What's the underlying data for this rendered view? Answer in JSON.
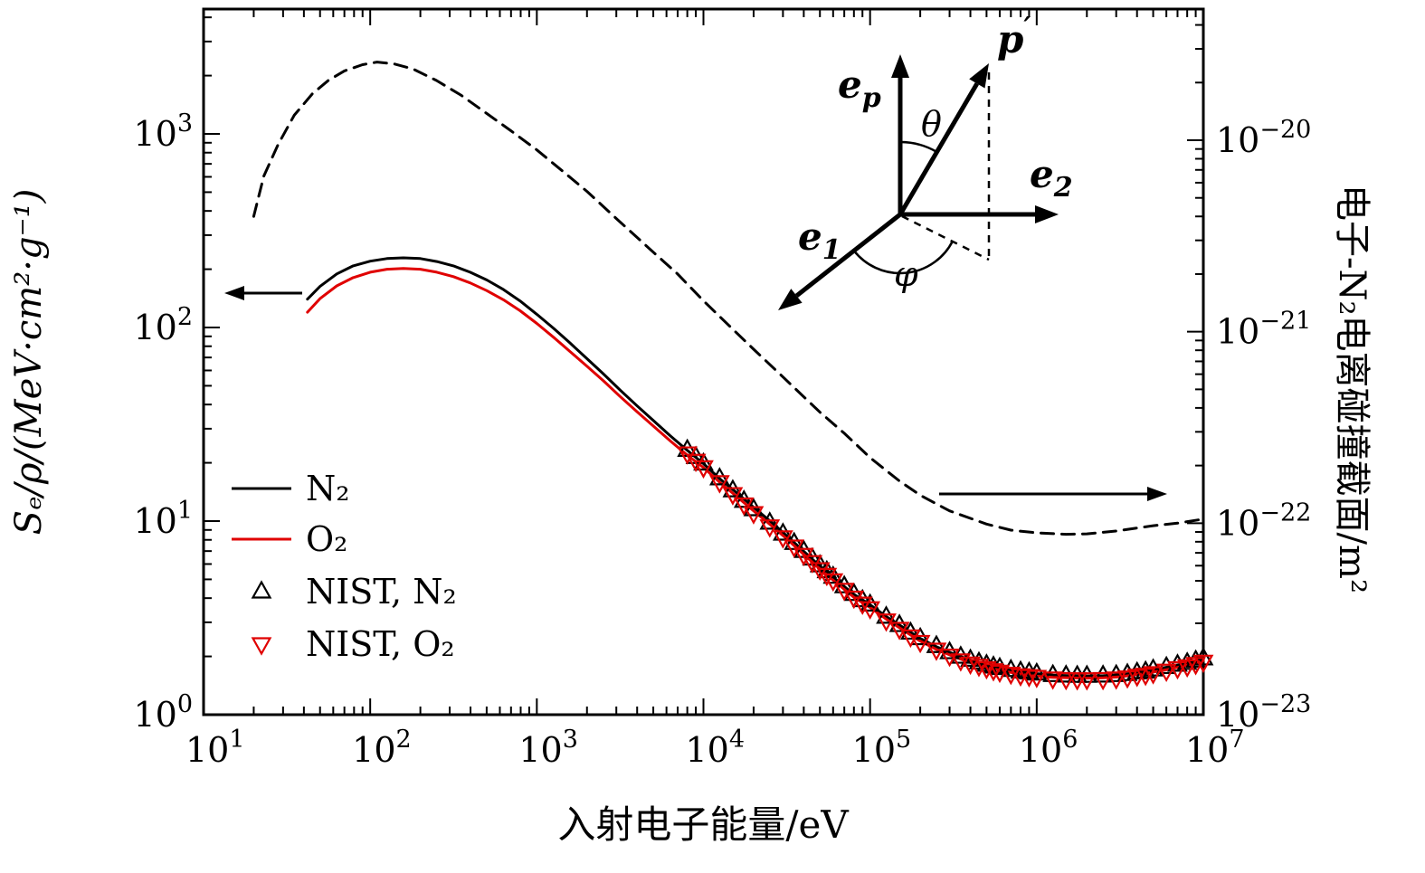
{
  "chart_data": {
    "type": "line",
    "title": "",
    "xlabel": "入射电子能量/eV",
    "ylabel_left": "Sₑ/ρ/(MeV·cm²·g⁻¹)",
    "ylabel_right": "电子-N₂电离碰撞截面/m²",
    "x_axis": {
      "scale": "log",
      "min": 10,
      "max": 10000000,
      "tick_exponents": [
        "1",
        "2",
        "3",
        "4",
        "5",
        "6",
        "7"
      ]
    },
    "y_left": {
      "scale": "log",
      "min": 1,
      "max": 4400,
      "tick_exponents": [
        "0",
        "1",
        "2",
        "3"
      ]
    },
    "y_right": {
      "scale": "log",
      "min": 1e-23,
      "max": 4.9e-20,
      "tick_exponents": [
        "−23",
        "−22",
        "−21",
        "−20"
      ]
    },
    "grid": false,
    "colors": {
      "n2": "#000000",
      "o2": "#e00000",
      "cross_section": "#000000"
    },
    "series": [
      {
        "id": "n2-line",
        "name": "N₂",
        "type": "line",
        "color": "#000000",
        "axis": "left",
        "dash": false,
        "points": [
          [
            42,
            140
          ],
          [
            50,
            163
          ],
          [
            63,
            189
          ],
          [
            79,
            208
          ],
          [
            100,
            220
          ],
          [
            126,
            227
          ],
          [
            158,
            229
          ],
          [
            200,
            227
          ],
          [
            251,
            219
          ],
          [
            316,
            208
          ],
          [
            398,
            193
          ],
          [
            501,
            176
          ],
          [
            631,
            157
          ],
          [
            794,
            137
          ],
          [
            1000,
            117
          ],
          [
            1259,
            99
          ],
          [
            1585,
            83
          ],
          [
            2000,
            69
          ],
          [
            2512,
            57.5
          ],
          [
            3162,
            47.5
          ],
          [
            3981,
            39.5
          ],
          [
            5012,
            33
          ],
          [
            6310,
            27.6
          ],
          [
            7943,
            23.3
          ],
          [
            10000,
            19.8
          ],
          [
            12589,
            16.5
          ],
          [
            15849,
            14.0
          ],
          [
            19953,
            11.8
          ],
          [
            25119,
            10.0
          ],
          [
            31623,
            8.4
          ],
          [
            39811,
            7.0
          ],
          [
            50119,
            5.85
          ],
          [
            63096,
            4.95
          ],
          [
            79433,
            4.2
          ],
          [
            100000,
            3.7
          ],
          [
            125893,
            3.2
          ],
          [
            158489,
            2.82
          ],
          [
            199526,
            2.48
          ],
          [
            251189,
            2.24
          ],
          [
            316228,
            2.06
          ],
          [
            398107,
            1.92
          ],
          [
            501187,
            1.81
          ],
          [
            630957,
            1.73
          ],
          [
            794328,
            1.67
          ],
          [
            1000000,
            1.63
          ],
          [
            1258925,
            1.6
          ],
          [
            1584893,
            1.59
          ],
          [
            1995262,
            1.585
          ],
          [
            2511886,
            1.59
          ],
          [
            3162278,
            1.61
          ],
          [
            3981072,
            1.65
          ],
          [
            5011872,
            1.71
          ],
          [
            6309573,
            1.77
          ],
          [
            7943282,
            1.85
          ],
          [
            10000000,
            1.95
          ]
        ]
      },
      {
        "id": "o2-line",
        "name": "O₂",
        "type": "line",
        "color": "#e00000",
        "axis": "left",
        "dash": false,
        "points": [
          [
            42,
            120
          ],
          [
            50,
            141
          ],
          [
            63,
            164
          ],
          [
            79,
            181
          ],
          [
            100,
            193
          ],
          [
            126,
            200
          ],
          [
            158,
            202
          ],
          [
            200,
            200
          ],
          [
            251,
            193
          ],
          [
            316,
            183
          ],
          [
            398,
            170
          ],
          [
            501,
            155
          ],
          [
            631,
            139
          ],
          [
            794,
            122
          ],
          [
            1000,
            105
          ],
          [
            1259,
            89
          ],
          [
            1585,
            75
          ],
          [
            2000,
            63
          ],
          [
            2512,
            53
          ],
          [
            3162,
            44
          ],
          [
            3981,
            36.8
          ],
          [
            5012,
            30.9
          ],
          [
            6310,
            26.0
          ],
          [
            7943,
            22.0
          ],
          [
            10000,
            18.9
          ],
          [
            12589,
            15.8
          ],
          [
            15849,
            13.4
          ],
          [
            19953,
            11.3
          ],
          [
            25119,
            9.6
          ],
          [
            31623,
            8.1
          ],
          [
            39811,
            6.75
          ],
          [
            50119,
            5.65
          ],
          [
            63096,
            4.78
          ],
          [
            79433,
            4.06
          ],
          [
            100000,
            3.58
          ],
          [
            125893,
            3.1
          ],
          [
            158489,
            2.73
          ],
          [
            199526,
            2.4
          ],
          [
            251189,
            2.17
          ],
          [
            316228,
            2.0
          ],
          [
            398107,
            1.86
          ],
          [
            501187,
            1.76
          ],
          [
            630957,
            1.68
          ],
          [
            794328,
            1.62
          ],
          [
            1000000,
            1.58
          ],
          [
            1258925,
            1.56
          ],
          [
            1584893,
            1.55
          ],
          [
            1995262,
            1.545
          ],
          [
            2511886,
            1.55
          ],
          [
            3162278,
            1.57
          ],
          [
            3981072,
            1.61
          ],
          [
            5011872,
            1.66
          ],
          [
            6309573,
            1.72
          ],
          [
            7943282,
            1.8
          ],
          [
            10000000,
            1.9
          ]
        ]
      },
      {
        "id": "nist-n2-markers",
        "name": "NIST, N₂",
        "type": "scatter",
        "marker": "triangle-up",
        "color": "#000000",
        "axis": "left",
        "points": [
          [
            8000,
            23.3
          ],
          [
            9000,
            21.4
          ],
          [
            10000,
            19.8
          ],
          [
            12500,
            16.6
          ],
          [
            15000,
            14.4
          ],
          [
            17500,
            12.7
          ],
          [
            20000,
            11.5
          ],
          [
            25000,
            9.8
          ],
          [
            30000,
            8.6
          ],
          [
            35000,
            7.7
          ],
          [
            40000,
            7.0
          ],
          [
            45000,
            6.4
          ],
          [
            50000,
            5.9
          ],
          [
            55000,
            5.5
          ],
          [
            60000,
            5.15
          ],
          [
            70000,
            4.6
          ],
          [
            80000,
            4.2
          ],
          [
            90000,
            3.9
          ],
          [
            100000,
            3.7
          ],
          [
            125000,
            3.2
          ],
          [
            150000,
            2.9
          ],
          [
            175000,
            2.65
          ],
          [
            200000,
            2.48
          ],
          [
            250000,
            2.26
          ],
          [
            300000,
            2.1
          ],
          [
            350000,
            1.99
          ],
          [
            400000,
            1.92
          ],
          [
            450000,
            1.86
          ],
          [
            500000,
            1.81
          ],
          [
            550000,
            1.77
          ],
          [
            600000,
            1.74
          ],
          [
            700000,
            1.7
          ],
          [
            800000,
            1.67
          ],
          [
            900000,
            1.65
          ],
          [
            1000000,
            1.63
          ],
          [
            1250000,
            1.6
          ],
          [
            1500000,
            1.59
          ],
          [
            1750000,
            1.585
          ],
          [
            2000000,
            1.585
          ],
          [
            2500000,
            1.59
          ],
          [
            3000000,
            1.6
          ],
          [
            3500000,
            1.62
          ],
          [
            4000000,
            1.65
          ],
          [
            4500000,
            1.67
          ],
          [
            5000000,
            1.71
          ],
          [
            6000000,
            1.76
          ],
          [
            7000000,
            1.81
          ],
          [
            8000000,
            1.85
          ],
          [
            9000000,
            1.9
          ],
          [
            10000000,
            1.95
          ]
        ]
      },
      {
        "id": "nist-o2-markers",
        "name": "NIST, O₂",
        "type": "scatter",
        "marker": "triangle-down",
        "color": "#e00000",
        "axis": "left",
        "points": [
          [
            8000,
            22.4
          ],
          [
            9000,
            20.5
          ],
          [
            10000,
            19.0
          ],
          [
            12500,
            15.9
          ],
          [
            15000,
            13.8
          ],
          [
            17500,
            12.2
          ],
          [
            20000,
            11.0
          ],
          [
            25000,
            9.4
          ],
          [
            30000,
            8.25
          ],
          [
            35000,
            7.4
          ],
          [
            40000,
            6.7
          ],
          [
            45000,
            6.15
          ],
          [
            50000,
            5.65
          ],
          [
            55000,
            5.28
          ],
          [
            60000,
            4.95
          ],
          [
            70000,
            4.42
          ],
          [
            80000,
            4.03
          ],
          [
            90000,
            3.75
          ],
          [
            100000,
            3.55
          ],
          [
            125000,
            3.07
          ],
          [
            150000,
            2.78
          ],
          [
            175000,
            2.54
          ],
          [
            200000,
            2.38
          ],
          [
            250000,
            2.17
          ],
          [
            300000,
            2.02
          ],
          [
            350000,
            1.91
          ],
          [
            400000,
            1.84
          ],
          [
            450000,
            1.79
          ],
          [
            500000,
            1.74
          ],
          [
            550000,
            1.7
          ],
          [
            600000,
            1.67
          ],
          [
            700000,
            1.63
          ],
          [
            800000,
            1.6
          ],
          [
            900000,
            1.585
          ],
          [
            1000000,
            1.57
          ],
          [
            1250000,
            1.54
          ],
          [
            1500000,
            1.53
          ],
          [
            1750000,
            1.525
          ],
          [
            2000000,
            1.525
          ],
          [
            2500000,
            1.53
          ],
          [
            3000000,
            1.54
          ],
          [
            3500000,
            1.56
          ],
          [
            4000000,
            1.59
          ],
          [
            4500000,
            1.61
          ],
          [
            5000000,
            1.64
          ],
          [
            6000000,
            1.69
          ],
          [
            7000000,
            1.74
          ],
          [
            8000000,
            1.78
          ],
          [
            9000000,
            1.83
          ],
          [
            10000000,
            1.88
          ]
        ]
      },
      {
        "id": "ionization-cross-section-line",
        "name": "电子-N₂电离碰撞截面",
        "type": "line",
        "color": "#000000",
        "axis": "right",
        "dash": true,
        "points": [
          [
            20,
            4e-21
          ],
          [
            23,
            6.5e-21
          ],
          [
            28,
            9.5e-21
          ],
          [
            35,
            1.35e-20
          ],
          [
            45,
            1.75e-20
          ],
          [
            56,
            2.05e-20
          ],
          [
            70,
            2.3e-20
          ],
          [
            90,
            2.48e-20
          ],
          [
            110,
            2.56e-20
          ],
          [
            140,
            2.5e-20
          ],
          [
            180,
            2.36e-20
          ],
          [
            250,
            2.05e-20
          ],
          [
            350,
            1.72e-20
          ],
          [
            500,
            1.38e-20
          ],
          [
            700,
            1.12e-20
          ],
          [
            1000,
            8.9e-21
          ],
          [
            1400,
            7e-21
          ],
          [
            2000,
            5.4e-21
          ],
          [
            3000,
            3.9e-21
          ],
          [
            5000,
            2.6e-21
          ],
          [
            7000,
            2e-21
          ],
          [
            10000,
            1.45e-21
          ],
          [
            15000,
            1.03e-21
          ],
          [
            20000,
            8.1e-22
          ],
          [
            30000,
            5.8e-22
          ],
          [
            50000,
            3.8e-22
          ],
          [
            70000,
            2.95e-22
          ],
          [
            100000,
            2.2e-22
          ],
          [
            150000,
            1.66e-22
          ],
          [
            200000,
            1.4e-22
          ],
          [
            300000,
            1.16e-22
          ],
          [
            500000,
            9.9e-23
          ],
          [
            700000,
            9.2e-23
          ],
          [
            1000000,
            8.9e-23
          ],
          [
            1500000,
            8.75e-23
          ],
          [
            2000000,
            8.8e-23
          ],
          [
            3000000,
            9.1e-23
          ],
          [
            5000000,
            9.7e-23
          ],
          [
            7000000,
            1e-22
          ],
          [
            10000000,
            1.05e-22
          ]
        ]
      }
    ],
    "legend": {
      "position": "inside-left-middle",
      "frame": false,
      "items": [
        {
          "label": "N₂",
          "swatch": "line",
          "color": "#000000"
        },
        {
          "label": "O₂",
          "swatch": "line",
          "color": "#e00000"
        },
        {
          "label": "NIST, N₂",
          "swatch": "triangle-up",
          "color": "#000000"
        },
        {
          "label": "NIST, O₂",
          "swatch": "triangle-down",
          "color": "#e00000"
        }
      ]
    }
  },
  "inset": {
    "labels": {
      "ep": {
        "main": "e",
        "sub": "p"
      },
      "p_prime": {
        "main": "p",
        "sup": "′"
      },
      "e2": {
        "main": "e",
        "sub": "2"
      },
      "e1": {
        "main": "e",
        "sub": "1"
      },
      "theta": "θ",
      "phi": "φ"
    }
  }
}
